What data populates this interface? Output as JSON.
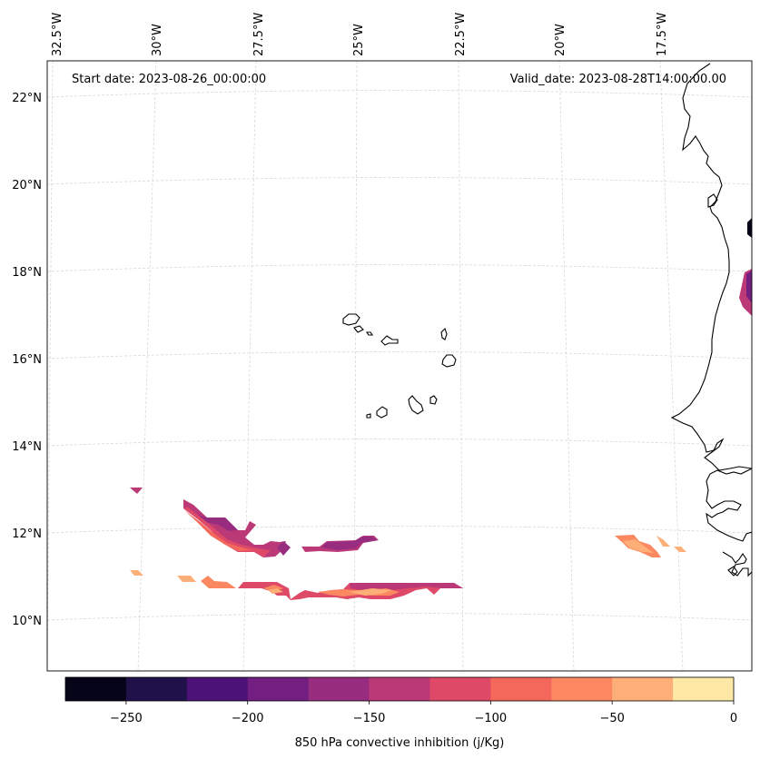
{
  "map": {
    "start_date_text": "Start date: 2023-08-26_00:00:00",
    "valid_date_text": "Valid_date: 2023-08-28T14:00:00.00",
    "lon_labels": [
      "32.5°W",
      "30°W",
      "27.5°W",
      "25°W",
      "22.5°W",
      "20°W",
      "17.5°W"
    ],
    "lat_labels": [
      "22°N",
      "20°N",
      "18°N",
      "16°N",
      "14°N",
      "12°N",
      "10°N"
    ],
    "coastline_color": "#000000",
    "gridline_color": "#d8d8d8"
  },
  "colorbar": {
    "label": "850 hPa convective inhibition (j/Kg)",
    "tick_labels": [
      "−250",
      "−200",
      "−150",
      "−100",
      "−50",
      "0"
    ],
    "range": [
      -275,
      0
    ],
    "levels": [
      -275,
      -250,
      -225,
      -200,
      -175,
      -150,
      -125,
      -100,
      -75,
      -50,
      -25,
      0
    ],
    "colors": [
      "#050418",
      "#20114a",
      "#4d1277",
      "#721f81",
      "#982d80",
      "#bc3978",
      "#de4968",
      "#f4685c",
      "#fb8861",
      "#feae77",
      "#fde8a5"
    ]
  }
}
